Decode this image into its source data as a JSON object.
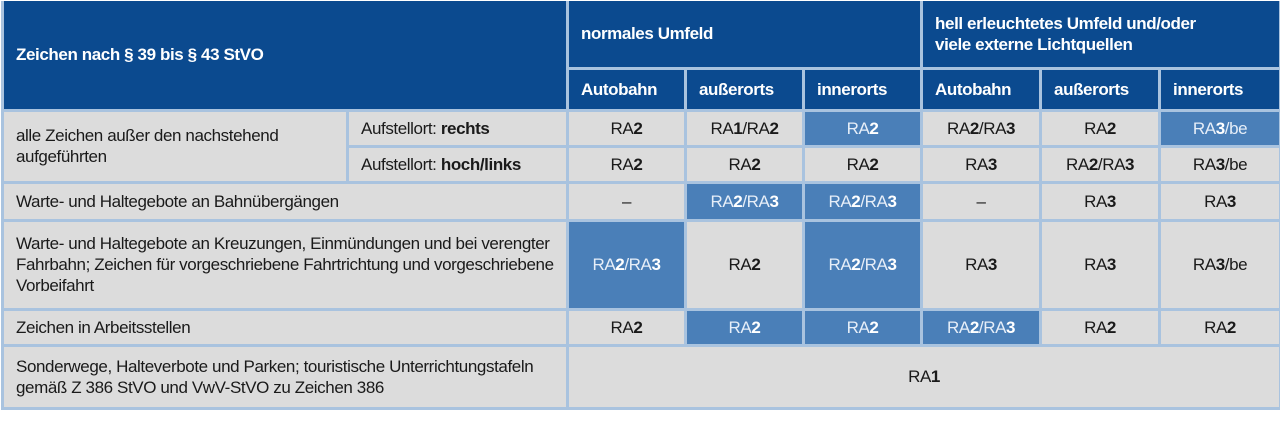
{
  "header": {
    "title": "Zeichen nach § 39 bis § 43 StVO",
    "group_normal": "normales Umfeld",
    "group_bright_line1": "hell erleuchtetes Umfeld und/oder",
    "group_bright_line2": "viele externe Lichtquellen",
    "columns": [
      "Autobahn",
      "außerorts",
      "innerorts",
      "Autobahn",
      "außerorts",
      "innerorts"
    ]
  },
  "colors": {
    "header": "#0b4a8f",
    "highlight": "#4a7fb8",
    "cell": "#dcdcdc",
    "border": "#a9c3df"
  },
  "rows": [
    {
      "label": "alle Zeichen außer den nachstehend aufgeführten",
      "sub_prefix": "Aufstellort: ",
      "sub_bold": "rechts",
      "values": [
        "RA2",
        "RA1/RA2",
        "RA2",
        "RA2/RA3",
        "RA2",
        "RA3/be"
      ],
      "highlight": [
        false,
        false,
        true,
        false,
        false,
        true
      ]
    },
    {
      "sub_prefix": "Aufstellort: ",
      "sub_bold": "hoch/links",
      "values": [
        "RA2",
        "RA2",
        "RA2",
        "RA3",
        "RA2/RA3",
        "RA3/be"
      ],
      "highlight": [
        false,
        false,
        false,
        false,
        false,
        false
      ]
    },
    {
      "label": "Warte- und Haltegebote an Bahnübergängen",
      "values": [
        "–",
        "RA2/RA3",
        "RA2/RA3",
        "–",
        "RA3",
        "RA3"
      ],
      "highlight": [
        false,
        true,
        true,
        false,
        false,
        false
      ]
    },
    {
      "label": "Warte- und Haltegebote an Kreuzungen, Einmündungen und bei verengter Fahrbahn; Zeichen für vorgeschriebene Fahrtrichtung und vorgeschriebene Vorbeifahrt",
      "values": [
        "RA2/RA3",
        "RA2",
        "RA2/RA3",
        "RA3",
        "RA3",
        "RA3/be"
      ],
      "highlight": [
        true,
        false,
        true,
        false,
        false,
        false
      ]
    },
    {
      "label": "Zeichen in Arbeitsstellen",
      "values": [
        "RA2",
        "RA2",
        "RA2",
        "RA2/RA3",
        "RA2",
        "RA2"
      ],
      "highlight": [
        false,
        true,
        true,
        true,
        false,
        false
      ]
    },
    {
      "label": "Sonderwege, Halteverbote und Parken; touristische Unterrichtungstafeln gemäß Z 386 StVO und VwV-StVO zu Zeichen 386",
      "values": [
        "RA1"
      ]
    }
  ]
}
